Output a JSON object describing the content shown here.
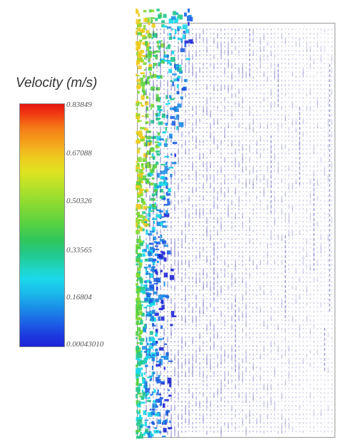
{
  "legend": {
    "title": "Velocity (m/s)",
    "ticks": [
      "0.83849",
      "0.67088",
      "0.50326",
      "0.33565",
      "0.16804",
      "0.00043010"
    ]
  },
  "colors": {
    "max": "#e8140f",
    "high": "#eecb1f",
    "mid": "#55d043",
    "low": "#1bd9ea",
    "min": "#1d23d8",
    "vector": "#3a3aa8"
  }
}
